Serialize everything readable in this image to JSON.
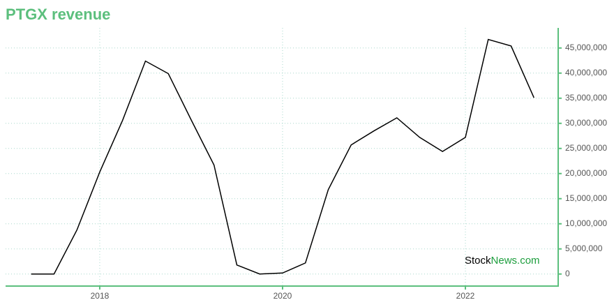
{
  "chart_data": {
    "type": "line",
    "title": "PTGX revenue",
    "watermark": [
      "Stock",
      "News.com"
    ],
    "x": [
      2017.25,
      2017.5,
      2017.75,
      2018,
      2018.25,
      2018.5,
      2018.75,
      2019,
      2019.25,
      2019.5,
      2019.75,
      2020,
      2020.25,
      2020.5,
      2020.75,
      2021,
      2021.25,
      2021.5,
      2021.75,
      2022,
      2022.25,
      2022.5,
      2022.75
    ],
    "series": [
      {
        "name": "Revenue",
        "color": "#000000",
        "values": [
          0,
          0,
          8750000,
          20300000,
          30600000,
          42400000,
          39900000,
          30700000,
          21700000,
          1800000,
          0,
          200000,
          2200000,
          16800000,
          25700000,
          28500000,
          31100000,
          27200000,
          24400000,
          27200000,
          46700000,
          45400000,
          35100000
        ]
      }
    ],
    "xlim": [
      2016.97,
      2023.015
    ],
    "xticks": [
      2018,
      2020,
      2022
    ],
    "ylim": [
      -2400000,
      49000000
    ],
    "yticks": [
      0,
      {
        "value": 5000000,
        "label": "5,000,000"
      },
      {
        "value": 10000000,
        "label": "10,000,000"
      },
      {
        "value": 15000000,
        "label": "15,000,000"
      },
      {
        "value": 20000000,
        "label": "20,000,000"
      },
      {
        "value": 25000000,
        "label": "25,000,000"
      },
      {
        "value": 30000000,
        "label": "30,000,000"
      },
      {
        "value": 35000000,
        "label": "35,000,000"
      },
      {
        "value": 40000000,
        "label": "40,000,000"
      },
      {
        "value": 45000000,
        "label": "45,000,000"
      }
    ],
    "grid": true,
    "axis_color": "#5cbf7d"
  }
}
